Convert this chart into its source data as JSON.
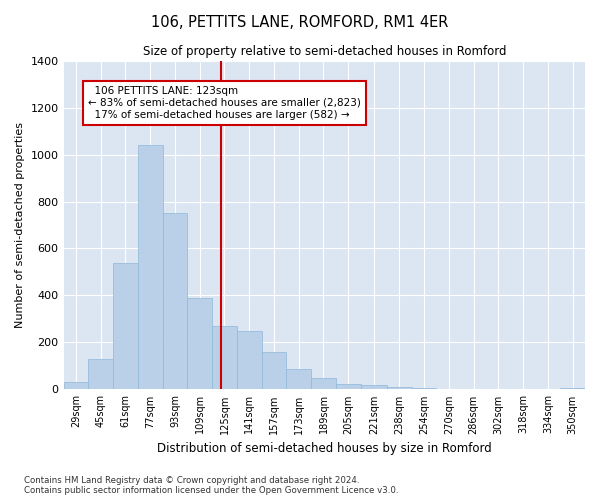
{
  "title": "106, PETTITS LANE, ROMFORD, RM1 4ER",
  "subtitle": "Size of property relative to semi-detached houses in Romford",
  "xlabel": "Distribution of semi-detached houses by size in Romford",
  "ylabel": "Number of semi-detached properties",
  "property_size": 123,
  "property_label": "106 PETTITS LANE: 123sqm",
  "pct_smaller": 83,
  "n_smaller": 2823,
  "pct_larger": 17,
  "n_larger": 582,
  "categories": [
    "29sqm",
    "45sqm",
    "61sqm",
    "77sqm",
    "93sqm",
    "109sqm",
    "125sqm",
    "141sqm",
    "157sqm",
    "173sqm",
    "189sqm",
    "205sqm",
    "221sqm",
    "238sqm",
    "254sqm",
    "270sqm",
    "286sqm",
    "302sqm",
    "318sqm",
    "334sqm",
    "350sqm"
  ],
  "values": [
    30,
    130,
    540,
    1040,
    750,
    390,
    270,
    250,
    160,
    85,
    50,
    25,
    20,
    12,
    5,
    2,
    1,
    0,
    0,
    0,
    5
  ],
  "bin_edges": [
    21,
    37,
    53,
    69,
    85,
    101,
    117,
    133,
    149,
    165,
    181,
    197,
    213,
    230,
    246,
    262,
    278,
    294,
    310,
    326,
    342,
    358
  ],
  "bar_color": "#bad0e8",
  "bar_edge_color": "#8fb8d8",
  "plot_bg_color": "#dce6f2",
  "grid_color": "#ffffff",
  "annotation_box_color": "#ffffff",
  "annotation_border_color": "#cc0000",
  "vline_color": "#cc0000",
  "footer_text": "Contains HM Land Registry data © Crown copyright and database right 2024.\nContains public sector information licensed under the Open Government Licence v3.0.",
  "ylim": [
    0,
    1400
  ],
  "yticks": [
    0,
    200,
    400,
    600,
    800,
    1000,
    1200,
    1400
  ],
  "fig_bg_color": "#ffffff"
}
